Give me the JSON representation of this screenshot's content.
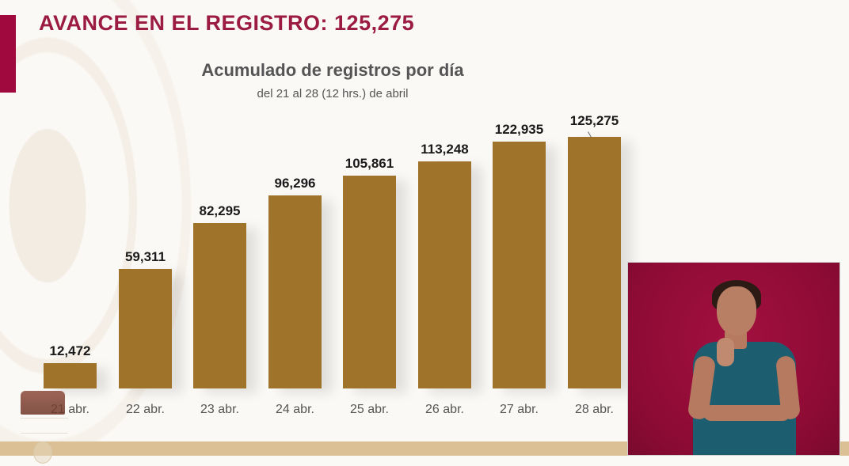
{
  "header": {
    "title": "AVANCE EN EL REGISTRO: 125,275",
    "accent_color": "#a0093d"
  },
  "chart_data": {
    "type": "bar",
    "title": "Acumulado de registros por día",
    "subtitle": "del 21 al 28 (12 hrs.) de abril",
    "categories": [
      "21 abr.",
      "22 abr.",
      "23 abr.",
      "24 abr.",
      "25 abr.",
      "26 abr.",
      "27 abr.",
      "28 abr."
    ],
    "values": [
      12472,
      59311,
      82295,
      96296,
      105861,
      113248,
      122935,
      125275
    ],
    "value_labels": [
      "12,472",
      "59,311",
      "82,295",
      "96,296",
      "105,861",
      "113,248",
      "122,935",
      "125,275"
    ],
    "xlabel": "",
    "ylabel": "",
    "grid": false,
    "legend": null,
    "bar_color": "#a0732a",
    "ylim": [
      0,
      130000
    ]
  },
  "overlay": {
    "interpreter_panel": "sign-language-interpreter",
    "background_color": "#8d0b35"
  },
  "footer": {
    "band_color": "#dcc095",
    "logo": "government-logo"
  }
}
